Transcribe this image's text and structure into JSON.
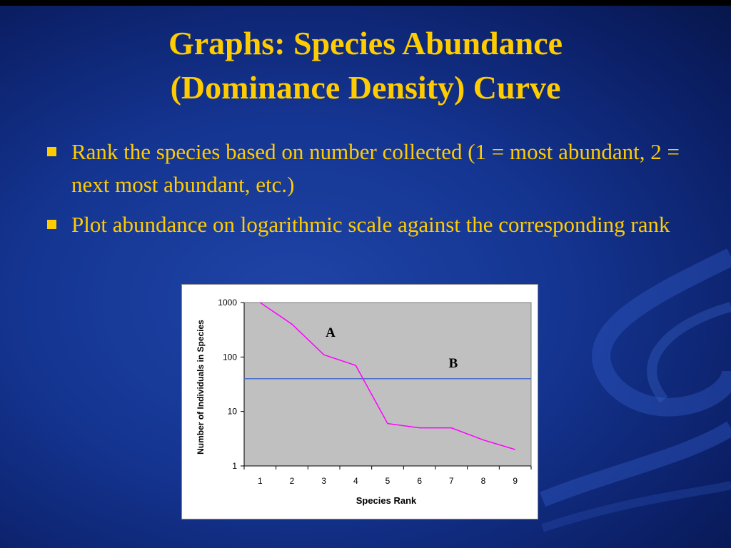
{
  "slide": {
    "title_line1": "Graphs: Species Abundance",
    "title_line2": "(Dominance Density) Curve",
    "bullets": [
      "Rank the species based on number collected (1 = most abundant, 2 = next most abundant, etc.)",
      "Plot abundance on logarithmic scale against the corresponding rank"
    ]
  },
  "colors": {
    "title_text": "#ffcc00",
    "background": "#143490",
    "plot_area": "#c0c0c0",
    "series_a": "#ff00ff",
    "series_b": "#4a6fc8"
  },
  "chart_data": {
    "type": "line",
    "title": "",
    "xlabel": "Species Rank",
    "ylabel": "Number of Individuals in Species",
    "yscale": "log",
    "ylim": [
      1,
      1000
    ],
    "yticks": [
      "1",
      "10",
      "100",
      "1000"
    ],
    "x": [
      1,
      2,
      3,
      4,
      5,
      6,
      7,
      8,
      9
    ],
    "xticks": [
      "1",
      "2",
      "3",
      "4",
      "5",
      "6",
      "7",
      "8",
      "9"
    ],
    "series": [
      {
        "name": "A",
        "values": [
          1000,
          400,
          110,
          70,
          6,
          5,
          5,
          3,
          2
        ]
      },
      {
        "name": "B",
        "values": [
          40,
          40,
          40,
          40,
          40,
          40,
          40,
          40,
          40
        ]
      }
    ],
    "grid": false,
    "legend": "none"
  }
}
